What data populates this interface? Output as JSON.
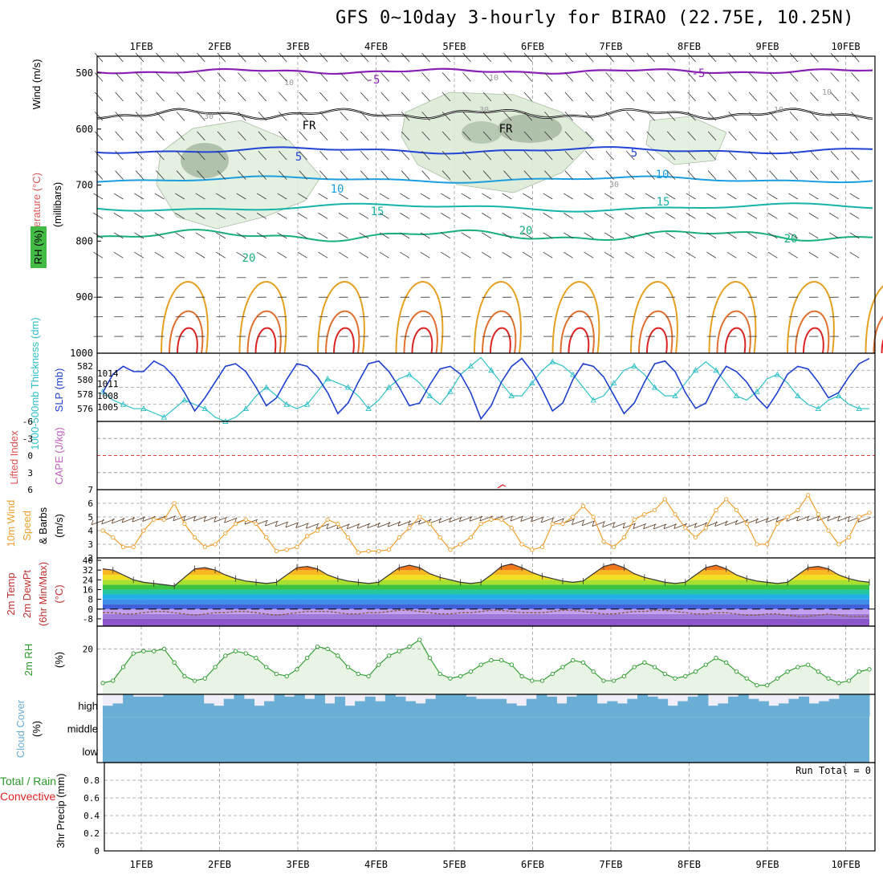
{
  "title": "GFS 0~10day 3-hourly for BIRAO (22.75E, 10.25N)",
  "colors": {
    "grid": "#9a9a9a",
    "frame": "#000000",
    "purple": "#8a1fb5",
    "blue_dark": "#2244d6",
    "blue_mid": "#1a9ee0",
    "teal": "#14b4a8",
    "green": "#18b07a",
    "orange": "#e6a020",
    "red": "#dd2222",
    "slp": "#1f3fcf",
    "thickness": "#2fc0c8",
    "wind10m": "#f0a030",
    "rh": "#2a9a2a",
    "cloud": "#6aaed6",
    "cloud_bg": "#f0eef8",
    "rh_fill": "#e8f4e4"
  },
  "chart_data": [
    {
      "type": "line",
      "panel": "upper-air",
      "ylabel_parts": [
        "RH (%)",
        "Temperature (°C)",
        "Wind (m/s)",
        "(millibars)"
      ],
      "y_ticks": [
        "500",
        "600",
        "700",
        "800",
        "900",
        "1000"
      ],
      "x_ticks": [
        "1FEB",
        "2FEB",
        "3FEB",
        "4FEB",
        "5FEB",
        "6FEB",
        "7FEB",
        "8FEB",
        "9FEB",
        "10FEB"
      ],
      "isotherm_labels": [
        "-5",
        "-5",
        "FR",
        "FR",
        "5",
        "5",
        "10",
        "10",
        "15",
        "15",
        "20",
        "20",
        "20"
      ],
      "rh_labels": [
        "10",
        "10",
        "30",
        "30",
        "10",
        "30",
        "10"
      ],
      "ylim": [
        1000,
        470
      ]
    },
    {
      "type": "line",
      "panel": "slp-thickness",
      "ylabel_left": "1000-500mb Thickness (dm)",
      "ylabel_right": "SLP (mb)",
      "left_ticks": [
        "582",
        "580",
        "578",
        "576"
      ],
      "right_ticks": [
        "1014",
        "1011",
        "1008",
        "1005"
      ],
      "series": [
        {
          "name": "SLP",
          "ylim": [
            1002.5,
            1015.5
          ],
          "values": [
            1008,
            1011.5,
            1013,
            1012,
            1012,
            1014,
            1013,
            1011,
            1008,
            1004.5,
            1007,
            1010,
            1013,
            1013.5,
            1012,
            1009,
            1005.5,
            1007,
            1010.5,
            1013.5,
            1013,
            1011,
            1008,
            1004,
            1006,
            1010,
            1013.5,
            1014,
            1012,
            1009,
            1005.5,
            1006,
            1009.5,
            1012.5,
            1013,
            1011.5,
            1008,
            1003,
            1005.5,
            1010,
            1013,
            1014.5,
            1012,
            1008.5,
            1004.5,
            1006,
            1010.5,
            1013.5,
            1013,
            1011,
            1007.5,
            1004,
            1006,
            1010,
            1013.5,
            1014,
            1012,
            1008,
            1005,
            1006,
            1010,
            1013,
            1012,
            1010,
            1007,
            1005,
            1008,
            1011.5,
            1013,
            1012.5,
            1010,
            1007,
            1008,
            1011,
            1013.5,
            1014.5
          ]
        },
        {
          "name": "Thickness",
          "ylim": [
            575,
            583
          ],
          "values": [
            578.5,
            577.5,
            577,
            576.5,
            576.5,
            576,
            575.5,
            576.5,
            577.5,
            577,
            576.5,
            575.5,
            575,
            575.5,
            576.5,
            578,
            579,
            578,
            577,
            576.5,
            577,
            578.5,
            580,
            579.5,
            579,
            578,
            576.5,
            577.5,
            579,
            580,
            580.5,
            579.5,
            578,
            577,
            578.5,
            580.5,
            581.5,
            582.5,
            581,
            579.5,
            578,
            578,
            579.5,
            581,
            582,
            581.5,
            580.5,
            579,
            577.5,
            578,
            579.5,
            581,
            581.5,
            580.5,
            579,
            578,
            578,
            579.5,
            581,
            582,
            581,
            579.5,
            578,
            577.5,
            578.5,
            580,
            580.5,
            579.5,
            578,
            577,
            576.5,
            577.5,
            578,
            577,
            576.5,
            576.5
          ]
        }
      ]
    },
    {
      "type": "line",
      "panel": "cape-li",
      "ylabel_left": "Lifted Index",
      "ylabel_right": "CAPE (J/kg)",
      "y_ticks": [
        "-6",
        "-3",
        "0",
        "3",
        "6"
      ],
      "ylim": [
        -6,
        6
      ]
    },
    {
      "type": "line",
      "panel": "wind10m",
      "ylabel_parts": [
        "10m Wind",
        "Speed",
        "& Barbs",
        "(m/s)"
      ],
      "y_ticks": [
        "2",
        "3",
        "4",
        "5",
        "6",
        "7"
      ],
      "ylim": [
        2,
        7
      ],
      "series": [
        {
          "name": "10m Wind Speed",
          "values": [
            4,
            3.5,
            2.8,
            2.8,
            4,
            4.8,
            4.8,
            6,
            4.5,
            3.5,
            2.8,
            3,
            3.8,
            4.5,
            4.8,
            4.5,
            3.5,
            2.5,
            2.6,
            2.8,
            3.6,
            4,
            4.8,
            4.5,
            3.5,
            2.4,
            2.5,
            2.5,
            2.6,
            3.5,
            4.2,
            5,
            4.5,
            3.5,
            2.6,
            3,
            3.5,
            4.5,
            4.8,
            4.8,
            4.2,
            3,
            2.6,
            2.8,
            4.5,
            4.5,
            5,
            5.8,
            5,
            3.2,
            2.8,
            3.5,
            4.8,
            5.2,
            5.5,
            6.3,
            5.2,
            4.2,
            3.5,
            4.2,
            5.5,
            6.3,
            5.5,
            4.5,
            3,
            3,
            4.5,
            5,
            5.5,
            6.6,
            5.2,
            4,
            3,
            3.5,
            5,
            5.3
          ]
        }
      ]
    },
    {
      "type": "area",
      "panel": "temp2m",
      "ylabel_parts": [
        "2m Temp",
        "2m DewPt",
        "(6hr Min/Max)",
        "(°C)"
      ],
      "y_ticks": [
        "40",
        "32",
        "24",
        "16",
        "8",
        "0",
        "-8"
      ],
      "ylim": [
        -14,
        42
      ],
      "series": [
        {
          "name": "2m Temp",
          "values": [
            33,
            32,
            28,
            24,
            22,
            21,
            20,
            19,
            26,
            33,
            34,
            32,
            28,
            25,
            23,
            22,
            21,
            22,
            28,
            34,
            35,
            33,
            28,
            25,
            23,
            22,
            21,
            22,
            28,
            34,
            36,
            34,
            29,
            26,
            24,
            22,
            21,
            22,
            28,
            35,
            37,
            34,
            30,
            27,
            25,
            23,
            22,
            23,
            29,
            35,
            37,
            34,
            29,
            26,
            24,
            22,
            21,
            22,
            28,
            34,
            36,
            33,
            28,
            25,
            23,
            22,
            21,
            22,
            28,
            34,
            35,
            33,
            28,
            25,
            23,
            22
          ]
        },
        {
          "name": "2m DewPt",
          "values": [
            -3,
            -3,
            -4,
            -4,
            -3,
            -2,
            -2,
            -3,
            -4,
            -5,
            -4,
            -3,
            -3,
            -2,
            -2,
            -3,
            -4,
            -5,
            -4,
            -3,
            -2,
            -2,
            -2,
            -3,
            -4,
            -4,
            -3,
            -3,
            -2,
            -1,
            -1,
            -2,
            -3,
            -4,
            -4,
            -3,
            -3,
            -2,
            -1,
            -1,
            -2,
            -3,
            -3,
            -3,
            -2,
            -1,
            -1,
            -2,
            -3,
            -4,
            -4,
            -3,
            -2,
            -2,
            -1,
            -1,
            -2,
            -3,
            -4,
            -4,
            -3,
            -3,
            -4,
            -5,
            -5,
            -4,
            -4,
            -5,
            -6,
            -6,
            -5,
            -4,
            -5,
            -6,
            -6,
            -6
          ]
        }
      ]
    },
    {
      "type": "area",
      "panel": "rh2m",
      "ylabel_left": "2m RH",
      "ylabel_right": "(%)",
      "y_ticks": [
        "20"
      ],
      "ylim": [
        0,
        30
      ],
      "series": [
        {
          "name": "2m RH",
          "values": [
            5,
            6,
            12,
            18,
            19,
            19,
            20,
            14,
            8,
            6,
            7,
            12,
            17,
            19,
            18,
            16,
            12,
            9,
            8,
            11,
            16,
            21,
            20,
            17,
            12,
            9,
            8,
            13,
            17,
            19,
            21,
            24,
            16,
            9,
            7,
            8,
            10,
            13,
            15,
            15,
            13,
            8,
            6,
            6,
            9,
            12,
            15,
            14,
            10,
            6,
            6,
            8,
            12,
            14,
            12,
            9,
            7,
            8,
            10,
            13,
            16,
            14,
            10,
            7,
            4,
            4,
            7,
            10,
            12,
            13,
            10,
            7,
            5,
            6,
            10,
            11
          ]
        }
      ]
    },
    {
      "type": "bar",
      "panel": "cloud",
      "ylabel_parts": [
        "Cloud Cover",
        "(%)"
      ],
      "levels": [
        "high",
        "middle",
        "low"
      ],
      "series": [
        {
          "name": "high",
          "values": [
            0.5,
            0.6,
            1,
            0.9,
            0.9,
            0.9,
            1,
            1,
            1,
            1,
            0.6,
            0.5,
            0.8,
            1,
            0.8,
            0.5,
            0.7,
            1,
            0.9,
            1,
            0.8,
            1,
            0.6,
            0.9,
            0.5,
            0.7,
            0.9,
            0.7,
            1,
            0.9,
            0.7,
            0.6,
            0.8,
            1,
            1,
            1,
            0.9,
            0.8,
            0.8,
            0.8,
            0.6,
            0.5,
            0.8,
            1,
            0.9,
            0.6,
            0.9,
            1,
            1,
            0.6,
            0.7,
            0.6,
            0.8,
            1,
            0.9,
            0.8,
            0.5,
            0.7,
            0.9,
            1,
            0.5,
            0.6,
            0.9,
            1,
            0.8,
            0.7,
            0.5,
            0.6,
            0.8,
            0.9,
            0.6,
            0.7,
            0.8,
            1,
            1,
            1
          ]
        }
      ]
    },
    {
      "type": "bar",
      "panel": "precip",
      "ylabel_parts": [
        "Total / Rain",
        "Convective",
        "3hr Precip (mm)"
      ],
      "y_ticks": [
        "0",
        "0.2",
        "0.4",
        "0.6",
        "0.8"
      ],
      "ylim": [
        0,
        1
      ],
      "run_total": "Run Total = 0",
      "series": []
    }
  ]
}
